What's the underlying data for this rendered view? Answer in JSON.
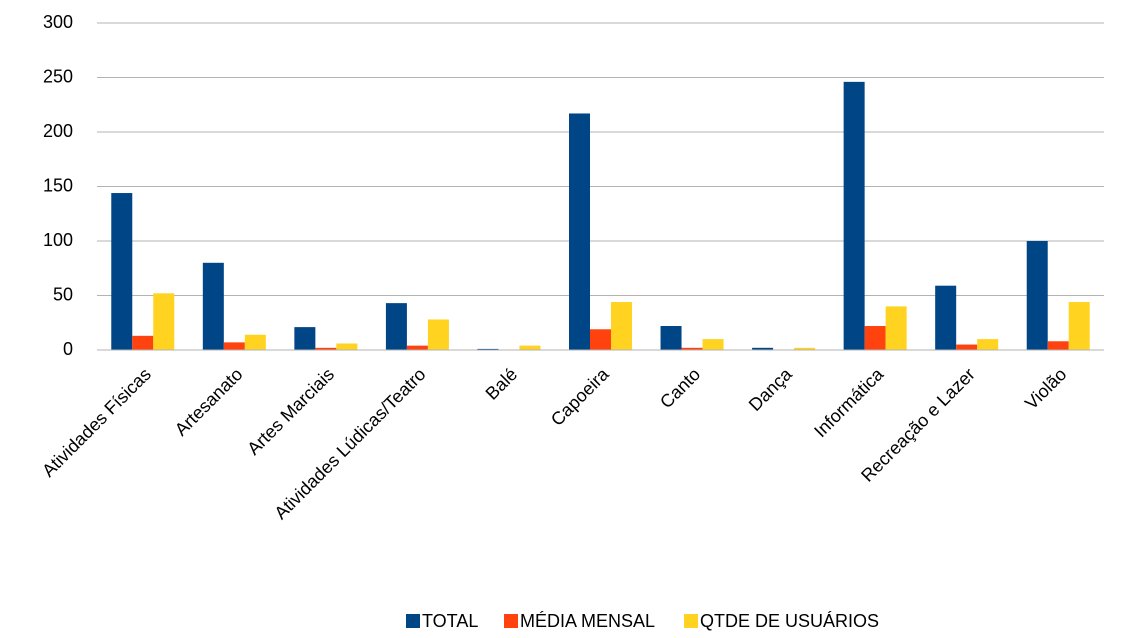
{
  "chart_data": {
    "type": "bar",
    "categories": [
      "Atividades Físicas",
      "Artesanato",
      "Artes Marciais",
      "Atividades Lúdicas/Teatro",
      "Balé",
      "Capoeira",
      "Canto",
      "Dança",
      "Informática",
      "Recreação e Lazer",
      "Violão"
    ],
    "series": [
      {
        "name": "TOTAL",
        "color": "#004586",
        "values": [
          144,
          80,
          21,
          43,
          1,
          217,
          22,
          2,
          246,
          59,
          100
        ]
      },
      {
        "name": "MÉDIA MENSAL",
        "color": "#ff420e",
        "values": [
          13,
          7,
          2,
          4,
          0,
          19,
          2,
          0,
          22,
          5,
          8
        ]
      },
      {
        "name": "QTDE DE USUÁRIOS",
        "color": "#ffd320",
        "values": [
          52,
          14,
          6,
          28,
          4,
          44,
          10,
          2,
          40,
          10,
          44
        ]
      }
    ],
    "ylim": [
      0,
      300
    ],
    "yticks": [
      0,
      50,
      100,
      150,
      200,
      250,
      300
    ],
    "grid": true,
    "legend": "bottom"
  }
}
